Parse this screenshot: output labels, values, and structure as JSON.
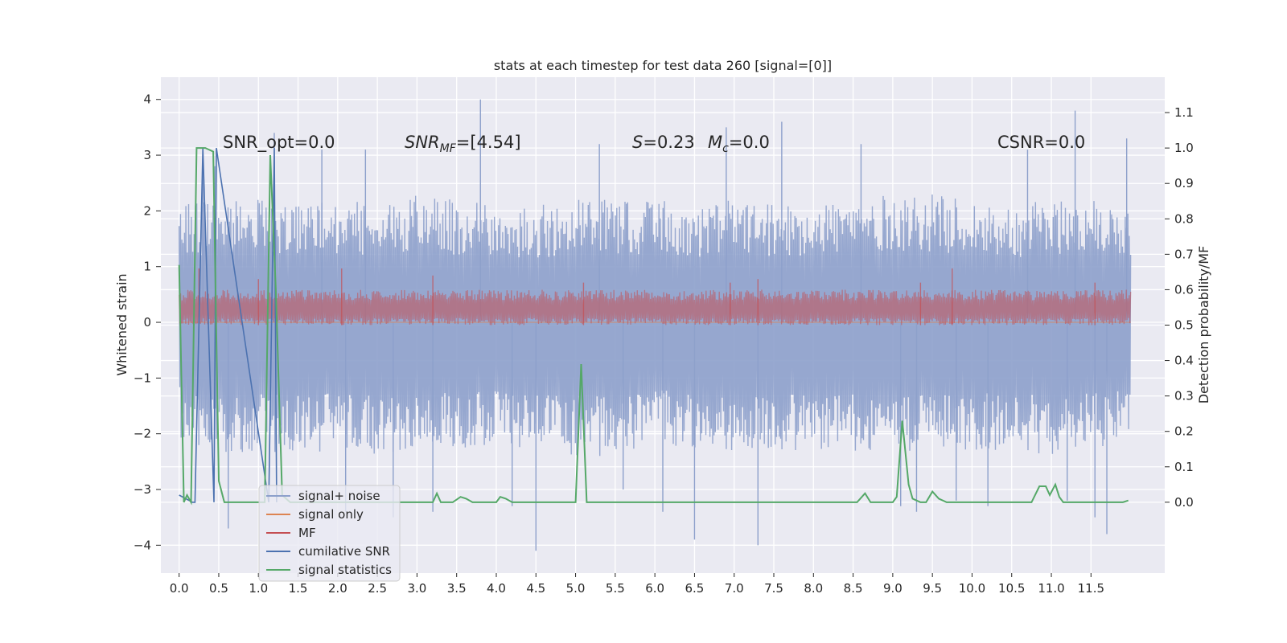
{
  "chart_data": {
    "type": "line",
    "title": "stats at each timestep for test data 260 [signal=[0]]",
    "ylabel": "Whitened strain",
    "ylabel_right": "Detection probability/MF",
    "xlim": [
      -0.23,
      12.43
    ],
    "ylim": [
      -4.5,
      4.4
    ],
    "ylim_right": [
      -0.2,
      1.2
    ],
    "x_ticks": [
      "0.0",
      "0.5",
      "1.0",
      "1.5",
      "2.0",
      "2.5",
      "3.0",
      "3.5",
      "4.0",
      "4.5",
      "5.0",
      "5.5",
      "6.0",
      "6.5",
      "7.0",
      "7.5",
      "8.0",
      "8.5",
      "9.0",
      "9.5",
      "10.0",
      "10.5",
      "11.0",
      "11.5"
    ],
    "y_ticks": [
      "4",
      "3",
      "2",
      "1",
      "0",
      "−1",
      "−2",
      "−3",
      "−4"
    ],
    "y_ticks_right": [
      "1.1",
      "1.0",
      "0.9",
      "0.8",
      "0.7",
      "0.6",
      "0.5",
      "0.4",
      "0.3",
      "0.2",
      "0.1",
      "0.0"
    ],
    "grid": true,
    "legend_location": "lower-left",
    "annotations": {
      "snr_opt": "SNR_opt=0.0",
      "snr_mf_main": "SNR",
      "snr_mf_sub": "MF",
      "snr_mf_rest": "=[4.54]",
      "s_var": "S",
      "s_val": "=0.23",
      "mc_var": "M",
      "mc_sub": "c",
      "mc_val": "=0.0",
      "csnr": "CSNR=0.0"
    },
    "series": [
      {
        "name": "signal+ noise",
        "color": "#8da0cb",
        "axis": "left",
        "x_range": [
          0,
          12.0
        ],
        "envelope_upper": [
          [
            0.0,
            2.1
          ],
          [
            0.5,
            2.2
          ],
          [
            1.0,
            2.3
          ],
          [
            1.5,
            2.2
          ],
          [
            2.0,
            2.2
          ],
          [
            2.5,
            2.2
          ],
          [
            3.0,
            2.3
          ],
          [
            3.5,
            2.2
          ],
          [
            4.0,
            2.1
          ],
          [
            4.5,
            2.1
          ],
          [
            5.0,
            2.2
          ],
          [
            5.5,
            2.2
          ],
          [
            6.0,
            2.2
          ],
          [
            6.5,
            2.1
          ],
          [
            7.0,
            2.2
          ],
          [
            7.5,
            2.1
          ],
          [
            8.0,
            2.2
          ],
          [
            8.5,
            2.2
          ],
          [
            9.0,
            2.3
          ],
          [
            9.5,
            2.3
          ],
          [
            10.0,
            2.2
          ],
          [
            10.5,
            2.1
          ],
          [
            11.0,
            2.2
          ],
          [
            11.5,
            2.2
          ],
          [
            12.0,
            2.1
          ]
        ],
        "envelope_lower": [
          [
            0.0,
            -2.1
          ],
          [
            0.5,
            -2.4
          ],
          [
            1.0,
            -2.3
          ],
          [
            1.5,
            -2.4
          ],
          [
            2.0,
            -2.3
          ],
          [
            2.5,
            -2.4
          ],
          [
            3.0,
            -2.3
          ],
          [
            3.5,
            -2.3
          ],
          [
            4.0,
            -2.2
          ],
          [
            4.5,
            -2.3
          ],
          [
            5.0,
            -2.4
          ],
          [
            5.5,
            -2.4
          ],
          [
            6.0,
            -2.2
          ],
          [
            6.5,
            -2.3
          ],
          [
            7.0,
            -2.3
          ],
          [
            7.5,
            -2.3
          ],
          [
            8.0,
            -2.3
          ],
          [
            8.5,
            -2.3
          ],
          [
            9.0,
            -2.4
          ],
          [
            9.5,
            -2.2
          ],
          [
            10.0,
            -2.3
          ],
          [
            10.5,
            -2.3
          ],
          [
            11.0,
            -2.4
          ],
          [
            11.5,
            -2.3
          ],
          [
            12.0,
            -2.1
          ]
        ],
        "spikes": [
          [
            0.3,
            3.0
          ],
          [
            0.45,
            2.8
          ],
          [
            0.62,
            -3.7
          ],
          [
            1.2,
            3.4
          ],
          [
            1.8,
            3.1
          ],
          [
            2.1,
            -3.4
          ],
          [
            2.35,
            3.1
          ],
          [
            2.7,
            -3.5
          ],
          [
            3.2,
            -3.4
          ],
          [
            3.8,
            4.0
          ],
          [
            4.2,
            -3.3
          ],
          [
            4.5,
            -4.1
          ],
          [
            5.3,
            3.2
          ],
          [
            5.6,
            -3.0
          ],
          [
            6.1,
            -3.4
          ],
          [
            6.5,
            -3.9
          ],
          [
            6.9,
            3.5
          ],
          [
            7.3,
            -4.0
          ],
          [
            7.6,
            3.6
          ],
          [
            8.6,
            3.2
          ],
          [
            9.1,
            -3.3
          ],
          [
            9.3,
            -3.4
          ],
          [
            9.8,
            -3.2
          ],
          [
            10.2,
            -3.3
          ],
          [
            10.7,
            3.1
          ],
          [
            11.2,
            -3.2
          ],
          [
            11.3,
            3.8
          ],
          [
            11.55,
            -3.5
          ],
          [
            11.7,
            -3.8
          ],
          [
            11.95,
            3.3
          ]
        ]
      },
      {
        "name": "signal only",
        "color": "#dd8452",
        "axis": "left",
        "values": "constant 0"
      },
      {
        "name": "MF",
        "color": "#c44e52",
        "axis": "right",
        "band": [
          0.5,
          0.6
        ],
        "peaks": [
          [
            0.25,
            0.66
          ],
          [
            1.0,
            0.63
          ],
          [
            2.05,
            0.66
          ],
          [
            3.2,
            0.64
          ],
          [
            5.1,
            0.62
          ],
          [
            6.95,
            0.62
          ],
          [
            7.3,
            0.63
          ],
          [
            9.75,
            0.66
          ],
          [
            9.35,
            0.62
          ],
          [
            11.55,
            0.62
          ]
        ]
      },
      {
        "name": "cumilative SNR",
        "color": "#4c72b0",
        "axis": "right",
        "points": [
          [
            0.0,
            0.02
          ],
          [
            0.17,
            0.0
          ],
          [
            0.2,
            0.0
          ],
          [
            0.3,
            1.0
          ],
          [
            0.44,
            0.0
          ],
          [
            0.47,
            1.0
          ],
          [
            1.13,
            0.0
          ],
          [
            1.2,
            1.0
          ],
          [
            1.23,
            0.0
          ]
        ]
      },
      {
        "name": "signal statistics",
        "color": "#55a868",
        "axis": "right",
        "points": [
          [
            0.0,
            0.67
          ],
          [
            0.06,
            0.0
          ],
          [
            0.1,
            0.02
          ],
          [
            0.15,
            0.0
          ],
          [
            0.22,
            1.0
          ],
          [
            0.28,
            1.0
          ],
          [
            0.33,
            1.0
          ],
          [
            0.43,
            0.99
          ],
          [
            0.5,
            0.06
          ],
          [
            0.57,
            0.0
          ],
          [
            0.7,
            0.0
          ],
          [
            0.9,
            0.0
          ],
          [
            1.08,
            0.0
          ],
          [
            1.15,
            0.98
          ],
          [
            1.22,
            0.6
          ],
          [
            1.3,
            0.02
          ],
          [
            1.4,
            0.0
          ],
          [
            2.0,
            0.0
          ],
          [
            3.0,
            0.0
          ],
          [
            3.2,
            0.0
          ],
          [
            3.25,
            0.025
          ],
          [
            3.3,
            0.0
          ],
          [
            3.45,
            0.0
          ],
          [
            3.55,
            0.015
          ],
          [
            3.62,
            0.01
          ],
          [
            3.7,
            0.0
          ],
          [
            4.0,
            0.0
          ],
          [
            4.05,
            0.015
          ],
          [
            4.12,
            0.01
          ],
          [
            4.2,
            0.0
          ],
          [
            5.0,
            0.0
          ],
          [
            5.07,
            0.39
          ],
          [
            5.14,
            0.0
          ],
          [
            5.3,
            0.0
          ],
          [
            6.1,
            0.0
          ],
          [
            8.55,
            0.0
          ],
          [
            8.65,
            0.025
          ],
          [
            8.72,
            0.0
          ],
          [
            9.0,
            0.0
          ],
          [
            9.05,
            0.015
          ],
          [
            9.12,
            0.23
          ],
          [
            9.2,
            0.05
          ],
          [
            9.25,
            0.01
          ],
          [
            9.35,
            0.0
          ],
          [
            9.42,
            0.0
          ],
          [
            9.5,
            0.03
          ],
          [
            9.58,
            0.01
          ],
          [
            9.68,
            0.0
          ],
          [
            10.0,
            0.0
          ],
          [
            10.75,
            0.0
          ],
          [
            10.85,
            0.045
          ],
          [
            10.93,
            0.045
          ],
          [
            10.98,
            0.02
          ],
          [
            11.05,
            0.05
          ],
          [
            11.1,
            0.015
          ],
          [
            11.15,
            0.0
          ],
          [
            11.9,
            0.0
          ],
          [
            11.97,
            0.005
          ]
        ]
      }
    ]
  }
}
